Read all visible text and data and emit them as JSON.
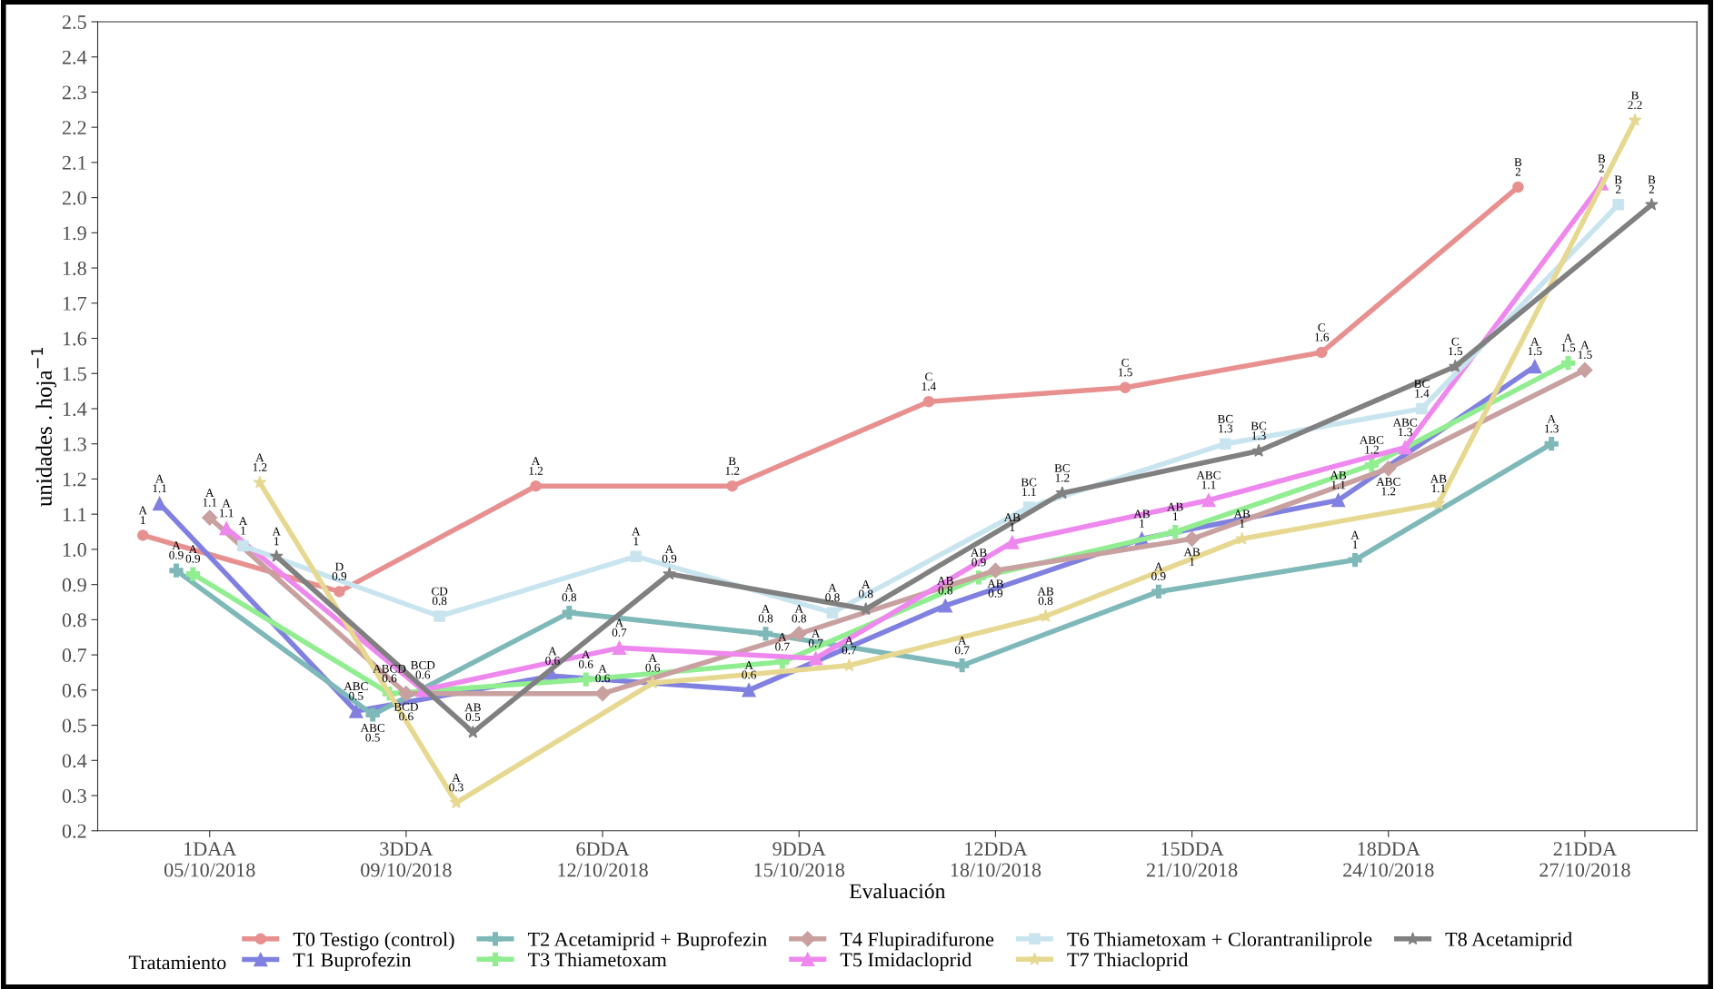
{
  "chart_data": {
    "type": "line",
    "xlabel": "Evaluación",
    "ylabel": "unidades . hoja$^{−1}$",
    "legend_title": "Tratamiento",
    "categories": [
      "1DAA\n05/10/2018",
      "3DDA\n09/10/2018",
      "6DDA\n12/10/2018",
      "9DDA\n15/10/2018",
      "12DDA\n18/10/2018",
      "15DDA\n21/10/2018",
      "18DDA\n24/10/2018",
      "21DDA\n27/10/2018"
    ],
    "ylim": [
      0.2,
      2.5
    ],
    "yticks": [
      0.2,
      0.3,
      0.4,
      0.5,
      0.6,
      0.7,
      0.8,
      0.9,
      {
        "value": 1,
        "label": "1.0"
      },
      1.1,
      1.2,
      1.3,
      1.4,
      1.5,
      1.6,
      1.7,
      1.8,
      1.9,
      {
        "value": 2,
        "label": "2.0"
      },
      2.1,
      2.2,
      2.3,
      2.4,
      2.5
    ],
    "grid": false,
    "legend": "bottom",
    "line_style": "solid",
    "series": [
      {
        "name": "T0 Testigo (control)",
        "color": "#e89090",
        "marker": "circle",
        "values": [
          1.04,
          0.88,
          1.18,
          1.18,
          1.42,
          1.46,
          1.56,
          2.03
        ],
        "value_labels": [
          "A\n1",
          "D\n0.9",
          "A\n1.2",
          "B\n1.2",
          "C\n1.4",
          "C\n1.5",
          "C\n1.6",
          "B\n2"
        ]
      },
      {
        "name": "T1 Buprofezin",
        "color": "#8080e0",
        "marker": "triangle",
        "values": [
          1.13,
          0.54,
          0.64,
          0.6,
          0.84,
          1.03,
          1.14,
          1.52
        ],
        "value_labels": [
          "A\n1.1",
          "ABC\n0.5",
          "A\n0.6",
          "A\n0.6",
          "AB\n0.8",
          "AB\n1",
          "AB\n1.1",
          "A\n1.5"
        ]
      },
      {
        "name": "T2 Acetamiprid + Buprofezin",
        "color": "#7fb8b8",
        "marker": "cross",
        "values": [
          0.94,
          0.53,
          0.82,
          0.76,
          0.67,
          0.88,
          0.97,
          1.3
        ],
        "value_labels": [
          "A\n0.9",
          "ABC\n0.5",
          "A\n0.8",
          "A\n0.8",
          "A\n0.7",
          "A\n0.9",
          "A\n1",
          "A\n1.3"
        ]
      },
      {
        "name": "T3 Thiametoxam",
        "color": "#90ee90",
        "marker": "cross",
        "values": [
          0.93,
          0.59,
          0.63,
          0.68,
          0.92,
          1.05,
          1.24,
          1.53
        ],
        "value_labels": [
          "A\n0.9",
          "ABCD\n0.6",
          "A\n0.6",
          "A\n0.7",
          "AB\n0.9",
          "AB\n1",
          "ABC\n1.2",
          "A\n1.5"
        ]
      },
      {
        "name": "T4 Flupiradifurone",
        "color": "#c8a0a0",
        "marker": "diamond",
        "values": [
          1.09,
          0.59,
          0.59,
          0.76,
          0.94,
          1.03,
          1.23,
          1.51
        ],
        "value_labels": [
          "A\n1.1",
          "BCD\n0.6",
          "A\n0.6",
          "A\n0.8",
          "AB\n0.9",
          "AB\n1",
          "ABC\n1.2",
          "A\n1.5"
        ]
      },
      {
        "name": "T5 Imidacloprid",
        "color": "#ee88ee",
        "marker": "triangle",
        "values": [
          1.06,
          0.6,
          0.72,
          0.69,
          1.02,
          1.14,
          1.29,
          2.04
        ],
        "value_labels": [
          "A\n1.1",
          "BCD\n0.6",
          "A\n0.7",
          "A\n0.7",
          "AB\n1",
          "ABC\n1.1",
          "ABC\n1.3",
          "B\n2"
        ]
      },
      {
        "name": "T6 Thiametoxam + Clorantraniliprole",
        "color": "#c8e4ee",
        "marker": "square",
        "values": [
          1.01,
          0.81,
          0.98,
          0.82,
          1.12,
          1.3,
          1.4,
          1.98
        ],
        "value_labels": [
          "A\n1",
          "CD\n0.8",
          "A\n1",
          "A\n0.8",
          "BC\n1.1",
          "BC\n1.3",
          "BC\n1.4",
          "B\n2"
        ]
      },
      {
        "name": "T7 Thiacloprid",
        "color": "#e6d890",
        "marker": "star",
        "values": [
          1.19,
          0.28,
          0.62,
          0.67,
          0.81,
          1.03,
          1.13,
          2.22
        ],
        "value_labels": [
          "A\n1.2",
          "A\n0.3",
          "A\n0.6",
          "A\n0.7",
          "AB\n0.8",
          "AB\n1",
          "AB\n1.1",
          "B\n2.2"
        ]
      },
      {
        "name": "T8 Acetamiprid",
        "color": "#808080",
        "marker": "star",
        "values": [
          0.98,
          0.48,
          0.93,
          0.83,
          1.16,
          1.28,
          1.52,
          1.98
        ],
        "value_labels": [
          "A\n1",
          "AB\n0.5",
          "A\n0.9",
          "A\n0.8",
          "BC\n1.2",
          "BC\n1.3",
          "C\n1.5",
          "B\n2"
        ]
      }
    ]
  }
}
